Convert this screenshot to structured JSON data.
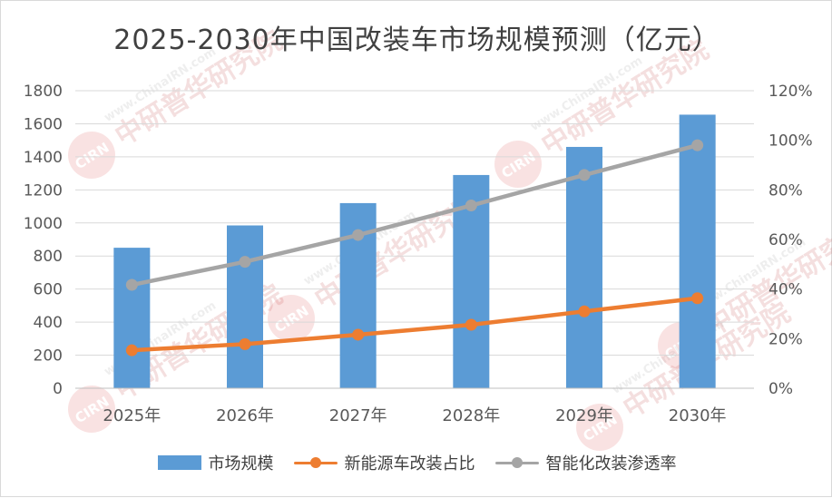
{
  "chart_data": {
    "type": "bar",
    "title": "2025-2030年中国改装车市场规模预测（亿元）",
    "categories": [
      "2025年",
      "2026年",
      "2027年",
      "2028年",
      "2029年",
      "2030年"
    ],
    "series": [
      {
        "name": "市场规模",
        "type": "bar",
        "axis": "left",
        "color": "#5b9bd5",
        "values": [
          850,
          985,
          1120,
          1290,
          1460,
          1655
        ]
      },
      {
        "name": "新能源车改装占比",
        "type": "line",
        "axis": "right",
        "color": "#ed7d31",
        "values": [
          15.3,
          17.8,
          21.6,
          25.6,
          31.0,
          36.3
        ]
      },
      {
        "name": "智能化改装渗透率",
        "type": "line",
        "axis": "right",
        "color": "#a5a5a5",
        "values": [
          41.7,
          51.0,
          61.8,
          73.7,
          86.0,
          98.0
        ]
      }
    ],
    "y_left": {
      "min": 0,
      "max": 1800,
      "step": 200,
      "ticks": [
        "0",
        "200",
        "400",
        "600",
        "800",
        "1000",
        "1200",
        "1400",
        "1600",
        "1800"
      ]
    },
    "y_right": {
      "min": 0,
      "max": 120,
      "step": 20,
      "ticks": [
        "0%",
        "20%",
        "40%",
        "60%",
        "80%",
        "100%",
        "120%"
      ]
    },
    "grid": true,
    "legend_position": "bottom",
    "watermark": {
      "brand": "中研普华研究院",
      "site": "www.ChinaIRN.com",
      "badge": "CIRN"
    }
  }
}
